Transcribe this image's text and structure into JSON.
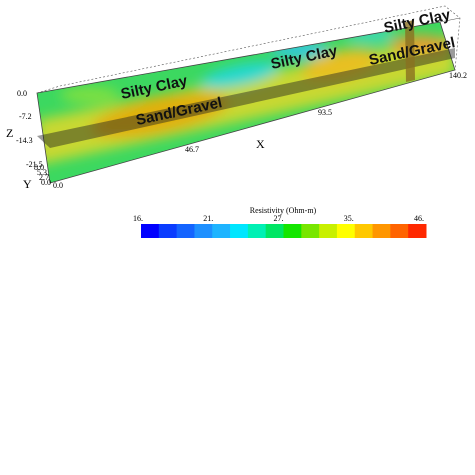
{
  "scene": {
    "labels": [
      "Silty Clay",
      "Sand/Gravel",
      "Silty Clay",
      "Silty Clay",
      "Sand/Gravel"
    ]
  },
  "axes": {
    "x": {
      "title": "X",
      "ticks": [
        "0.0",
        "46.7",
        "93.5",
        "140.2"
      ]
    },
    "y": {
      "title": "Y",
      "ticks": [
        "8.0",
        "5.3",
        "2.7",
        "0.0"
      ]
    },
    "z": {
      "title": "Z",
      "ticks": [
        "0.0",
        "-7.2",
        "-14.3",
        "-21.5"
      ]
    }
  },
  "colorbar": {
    "title": "Resistivity (Ohm-m)",
    "tick_labels": [
      "16.",
      "21.",
      "27.",
      "35.",
      "46."
    ],
    "colors": [
      "#0000ff",
      "#0a3cff",
      "#1464ff",
      "#1e90ff",
      "#1eb4ff",
      "#00e6ff",
      "#00f0b4",
      "#00e664",
      "#14e600",
      "#78e600",
      "#c8f000",
      "#ffff00",
      "#ffc800",
      "#ff9600",
      "#ff6400",
      "#ff2800"
    ]
  }
}
